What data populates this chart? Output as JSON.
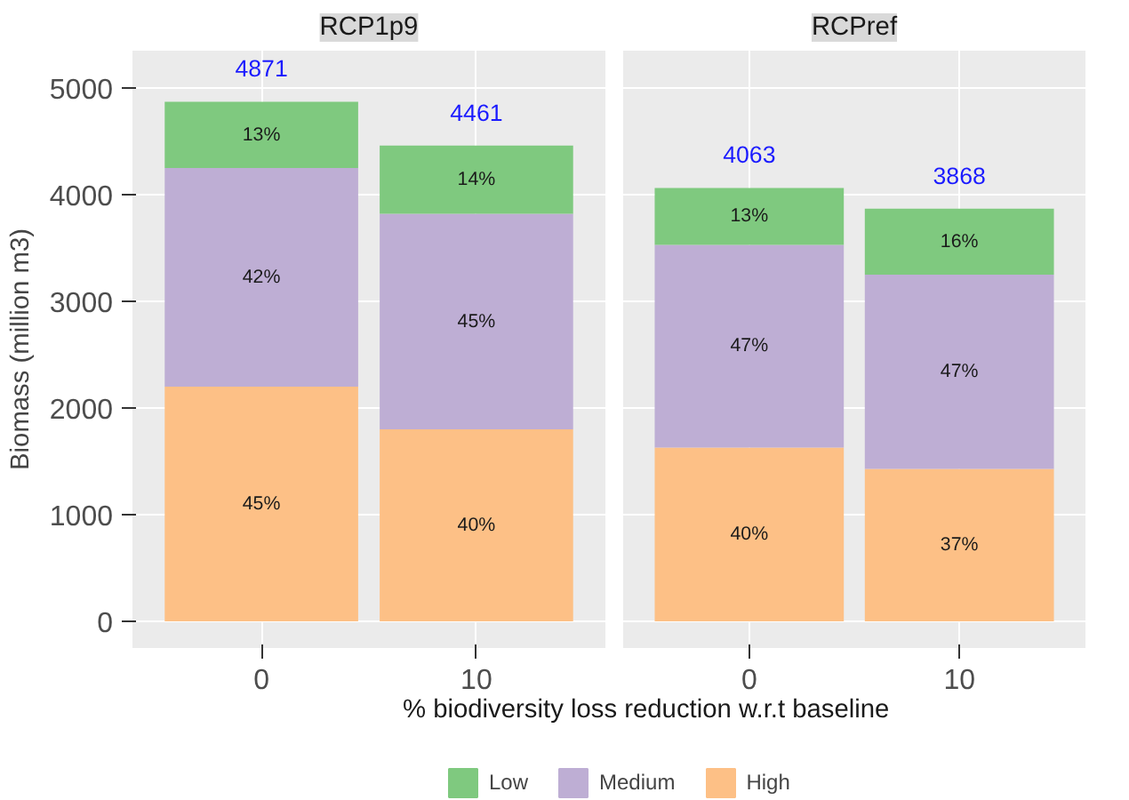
{
  "chart_data": [
    {
      "type": "bar",
      "title": "RCP1p9",
      "ylabel": "Biomass (million m3)",
      "xlabel": "% biodiversity loss reduction w.r.t baseline",
      "categories": [
        "0",
        "10"
      ],
      "stacked": true,
      "ylim": [
        -250,
        5350
      ],
      "yticks": [
        0,
        1000,
        2000,
        3000,
        4000,
        5000
      ],
      "grid": true,
      "legend": "bottom",
      "totals": [
        "4871",
        "4461"
      ],
      "series": [
        {
          "name": "High",
          "color": "#fdc086",
          "values": [
            2200,
            1800
          ]
        },
        {
          "name": "Medium",
          "color": "#beaed4",
          "values": [
            2050,
            2020
          ]
        },
        {
          "name": "Low",
          "color": "#7fc97f",
          "values": [
            621,
            641
          ]
        }
      ],
      "annotations": [
        "45%",
        "40%",
        "42%",
        "45%",
        "13%",
        "14%"
      ]
    },
    {
      "type": "bar",
      "title": "RCPref",
      "categories": [
        "0",
        "10"
      ],
      "stacked": true,
      "ylim": [
        -250,
        5350
      ],
      "yticks": [
        0,
        1000,
        2000,
        3000,
        4000,
        5000
      ],
      "grid": true,
      "tick_labels": "x",
      "totals": [
        "4063",
        "3868"
      ],
      "series": [
        {
          "color": "#fdc086",
          "values": [
            1630,
            1430
          ]
        },
        {
          "color": "#beaed4",
          "values": [
            1900,
            1820
          ]
        },
        {
          "color": "#7fc97f",
          "values": [
            533,
            618
          ]
        }
      ],
      "annotations": [
        "40%",
        "37%",
        "47%",
        "47%",
        "13%",
        "16%"
      ]
    }
  ]
}
